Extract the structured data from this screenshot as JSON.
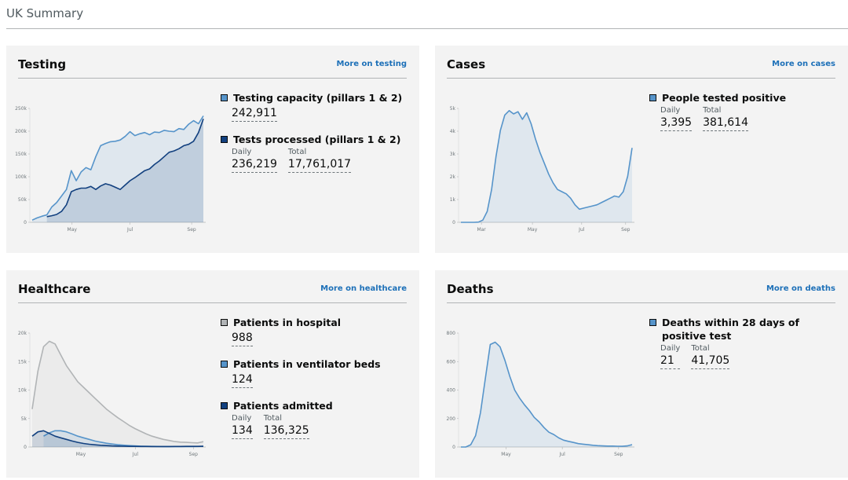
{
  "page": {
    "title": "UK Summary"
  },
  "colors": {
    "capacity": "#5694ca",
    "processed": "#12407f",
    "hospital": "#b1b4b6",
    "ventilator": "#5694ca",
    "admitted": "#12407f",
    "cases": "#5694ca",
    "deaths": "#5694ca"
  },
  "testing": {
    "title": "Testing",
    "link": "More on testing",
    "metrics": {
      "capacity": {
        "name": "Testing capacity (pillars 1 & 2)",
        "value": "242,911"
      },
      "processed": {
        "name": "Tests processed (pillars 1 & 2)",
        "daily_label": "Daily",
        "daily": "236,219",
        "total_label": "Total",
        "total": "17,761,017"
      }
    }
  },
  "cases": {
    "title": "Cases",
    "link": "More on cases",
    "metrics": {
      "positive": {
        "name": "People tested positive",
        "daily_label": "Daily",
        "daily": "3,395",
        "total_label": "Total",
        "total": "381,614"
      }
    }
  },
  "healthcare": {
    "title": "Healthcare",
    "link": "More on healthcare",
    "metrics": {
      "hospital": {
        "name": "Patients in hospital",
        "value": "988"
      },
      "ventilator": {
        "name": "Patients in ventilator beds",
        "value": "124"
      },
      "admitted": {
        "name": "Patients admitted",
        "daily_label": "Daily",
        "daily": "134",
        "total_label": "Total",
        "total": "136,325"
      }
    }
  },
  "deaths": {
    "title": "Deaths",
    "link": "More on deaths",
    "metrics": {
      "deaths28": {
        "name": "Deaths within 28 days of positive test",
        "daily_label": "Daily",
        "daily": "21",
        "total_label": "Total",
        "total": "41,705"
      }
    }
  },
  "chart_data": [
    {
      "type": "area",
      "panel": "testing",
      "x_ticks": [
        "May",
        "Jul",
        "Sep"
      ],
      "y_ticks": [
        "250k",
        "200k",
        "150k",
        "100k",
        "50k",
        "0"
      ],
      "ylim": [
        0,
        260000
      ],
      "series": [
        {
          "name": "Testing capacity (pillars 1 & 2)",
          "color": "#5694ca",
          "values": [
            5000,
            10000,
            14000,
            17000,
            35000,
            45000,
            60000,
            75000,
            118000,
            95000,
            115000,
            125000,
            120000,
            150000,
            175000,
            180000,
            184000,
            185000,
            188000,
            196000,
            207000,
            198000,
            202000,
            205000,
            200000,
            206000,
            205000,
            210000,
            208000,
            207000,
            214000,
            212000,
            224000,
            232000,
            225000,
            242911
          ]
        },
        {
          "name": "Tests processed (pillars 1 & 2)",
          "color": "#12407f",
          "values": [
            null,
            null,
            null,
            13000,
            15000,
            18000,
            25000,
            40000,
            70000,
            75000,
            78000,
            78000,
            82000,
            75000,
            83000,
            88000,
            85000,
            80000,
            75000,
            85000,
            95000,
            102000,
            110000,
            118000,
            122000,
            132000,
            140000,
            150000,
            160000,
            163000,
            168000,
            175000,
            178000,
            185000,
            205000,
            236219
          ]
        }
      ]
    },
    {
      "type": "area",
      "panel": "cases",
      "x_ticks": [
        "Mar",
        "May",
        "Jul",
        "Sep"
      ],
      "y_ticks": [
        "5k",
        "4k",
        "3k",
        "2k",
        "1k",
        "0"
      ],
      "ylim": [
        0,
        5200
      ],
      "series": [
        {
          "name": "People tested positive",
          "color": "#5694ca",
          "values": [
            0,
            0,
            0,
            0,
            10,
            100,
            500,
            1500,
            3000,
            4200,
            4900,
            5100,
            4950,
            5050,
            4700,
            5000,
            4500,
            3800,
            3200,
            2700,
            2200,
            1800,
            1500,
            1400,
            1300,
            1100,
            800,
            600,
            650,
            700,
            750,
            800,
            900,
            1000,
            1100,
            1200,
            1150,
            1400,
            2100,
            3395
          ]
        }
      ]
    },
    {
      "type": "area",
      "panel": "healthcare",
      "x_ticks": [
        "May",
        "Jul",
        "Sep"
      ],
      "y_ticks": [
        "20k",
        "15k",
        "10k",
        "5k",
        "0"
      ],
      "ylim": [
        0,
        21000
      ],
      "series": [
        {
          "name": "Patients in hospital",
          "color": "#b1b4b6",
          "values": [
            7000,
            14000,
            18500,
            19500,
            19000,
            17000,
            15000,
            13500,
            12000,
            11000,
            10000,
            9000,
            8000,
            7000,
            6200,
            5400,
            4700,
            4000,
            3400,
            2900,
            2400,
            2000,
            1700,
            1400,
            1200,
            1000,
            900,
            850,
            800,
            750,
            988
          ]
        },
        {
          "name": "Patients in ventilator beds",
          "color": "#5694ca",
          "values": [
            null,
            null,
            2000,
            2600,
            3000,
            3000,
            2800,
            2400,
            2000,
            1700,
            1400,
            1100,
            900,
            700,
            550,
            420,
            330,
            260,
            200,
            160,
            130,
            110,
            100,
            90,
            80,
            75,
            72,
            70,
            80,
            100,
            124
          ]
        },
        {
          "name": "Patients admitted",
          "color": "#12407f",
          "values": [
            2000,
            2800,
            3000,
            2500,
            2000,
            1700,
            1400,
            1100,
            850,
            650,
            500,
            400,
            320,
            260,
            210,
            170,
            140,
            120,
            110,
            100,
            95,
            90,
            85,
            85,
            90,
            95,
            100,
            110,
            115,
            120,
            134
          ]
        }
      ]
    },
    {
      "type": "area",
      "panel": "deaths",
      "x_ticks": [
        "May",
        "Jul",
        "Sep"
      ],
      "y_ticks": [
        "800",
        "600",
        "400",
        "200",
        "0"
      ],
      "ylim": [
        0,
        1000
      ],
      "series": [
        {
          "name": "Deaths within 28 days of positive test",
          "color": "#5694ca",
          "values": [
            0,
            0,
            20,
            100,
            300,
            600,
            900,
            920,
            880,
            760,
            620,
            500,
            430,
            370,
            320,
            260,
            220,
            170,
            130,
            110,
            80,
            60,
            50,
            40,
            30,
            25,
            20,
            15,
            12,
            10,
            8,
            8,
            7,
            6,
            10,
            21
          ]
        }
      ]
    }
  ]
}
